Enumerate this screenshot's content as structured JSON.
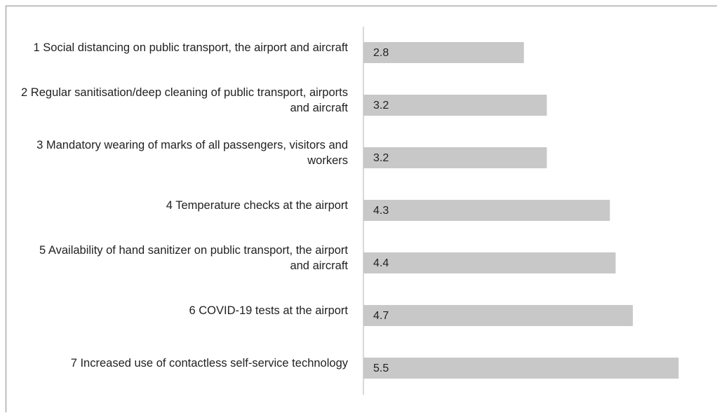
{
  "chart_data": {
    "type": "hbar",
    "categories": [
      "1 Social distancing on public transport, the airport and aircraft",
      "2 Regular sanitisation/deep cleaning of public transport, airports and aircraft",
      "3 Mandatory wearing of marks of all passengers, visitors and workers",
      "4 Temperature checks at the airport",
      "5 Availability of hand sanitizer on public transport, the airport and aircraft",
      "6 COVID-19 tests at the airport",
      "7 Increased use of contactless self-service technology"
    ],
    "values": [
      2.8,
      3.2,
      3.2,
      4.3,
      4.4,
      4.7,
      5.5
    ],
    "color": "#c8c8c8"
  }
}
